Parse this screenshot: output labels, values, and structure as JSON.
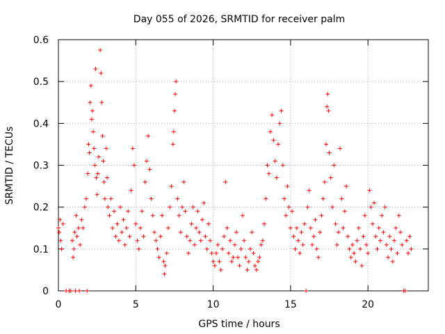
{
  "chart_data": {
    "type": "scatter",
    "title": "Day 055 of 2026, SRMTID for receiver palm",
    "xlabel": "GPS time / hours",
    "ylabel": "SRMTID / TECUs",
    "xlim": [
      0,
      23.9
    ],
    "ylim": [
      0,
      0.6
    ],
    "x_ticks": [
      0,
      5,
      10,
      15,
      20
    ],
    "y_ticks": [
      0,
      0.1,
      0.2,
      0.3,
      0.4,
      0.5,
      0.6
    ],
    "x_tick_labels": [
      "0",
      "5",
      "10",
      "15",
      "20"
    ],
    "y_tick_labels": [
      "0",
      "0.1",
      "0.2",
      "0.3",
      "0.4",
      "0.5",
      "0.6"
    ],
    "grid": true,
    "marker": "+",
    "series": [
      {
        "name": "SRMTID",
        "color": "#ff0000",
        "points": [
          [
            0.0,
            0.15
          ],
          [
            0.05,
            0.14
          ],
          [
            0.1,
            0.17
          ],
          [
            0.15,
            0.12
          ],
          [
            0.2,
            0.1
          ],
          [
            0.3,
            0.16
          ],
          [
            0.5,
            0.0
          ],
          [
            0.7,
            0.0
          ],
          [
            0.8,
            0.0
          ],
          [
            0.9,
            0.12
          ],
          [
            0.95,
            0.08
          ],
          [
            1.0,
            0.1
          ],
          [
            1.05,
            0.14
          ],
          [
            1.1,
            0.0
          ],
          [
            1.15,
            0.18
          ],
          [
            1.2,
            0.13
          ],
          [
            1.3,
            0.15
          ],
          [
            1.35,
            0.0
          ],
          [
            1.4,
            0.11
          ],
          [
            1.5,
            0.17
          ],
          [
            1.6,
            0.15
          ],
          [
            1.7,
            0.2
          ],
          [
            1.8,
            0.22
          ],
          [
            1.85,
            0.0
          ],
          [
            1.9,
            0.28
          ],
          [
            1.95,
            0.35
          ],
          [
            2.0,
            0.33
          ],
          [
            2.05,
            0.45
          ],
          [
            2.1,
            0.49
          ],
          [
            2.15,
            0.41
          ],
          [
            2.2,
            0.43
          ],
          [
            2.25,
            0.38
          ],
          [
            2.3,
            0.34
          ],
          [
            2.35,
            0.3
          ],
          [
            2.4,
            0.53
          ],
          [
            2.45,
            0.27
          ],
          [
            2.5,
            0.23
          ],
          [
            2.55,
            0.28
          ],
          [
            2.6,
            0.32
          ],
          [
            2.7,
            0.575
          ],
          [
            2.75,
            0.52
          ],
          [
            2.8,
            0.45
          ],
          [
            2.85,
            0.37
          ],
          [
            2.9,
            0.31
          ],
          [
            2.95,
            0.26
          ],
          [
            3.0,
            0.22
          ],
          [
            3.1,
            0.34
          ],
          [
            3.15,
            0.27
          ],
          [
            3.2,
            0.2
          ],
          [
            3.3,
            0.18
          ],
          [
            3.4,
            0.22
          ],
          [
            3.5,
            0.15
          ],
          [
            3.6,
            0.19
          ],
          [
            3.7,
            0.13
          ],
          [
            3.8,
            0.16
          ],
          [
            3.9,
            0.12
          ],
          [
            4.0,
            0.2
          ],
          [
            4.1,
            0.14
          ],
          [
            4.2,
            0.17
          ],
          [
            4.3,
            0.11
          ],
          [
            4.4,
            0.15
          ],
          [
            4.5,
            0.19
          ],
          [
            4.6,
            0.13
          ],
          [
            4.7,
            0.24
          ],
          [
            4.8,
            0.34
          ],
          [
            4.9,
            0.3
          ],
          [
            5.0,
            0.16
          ],
          [
            5.1,
            0.12
          ],
          [
            5.2,
            0.1
          ],
          [
            5.3,
            0.15
          ],
          [
            5.4,
            0.19
          ],
          [
            5.5,
            0.13
          ],
          [
            5.6,
            0.26
          ],
          [
            5.7,
            0.31
          ],
          [
            5.8,
            0.37
          ],
          [
            5.9,
            0.29
          ],
          [
            6.0,
            0.22
          ],
          [
            6.1,
            0.18
          ],
          [
            6.2,
            0.14
          ],
          [
            6.3,
            0.12
          ],
          [
            6.4,
            0.1
          ],
          [
            6.5,
            0.08
          ],
          [
            6.6,
            0.13
          ],
          [
            6.7,
            0.18
          ],
          [
            6.8,
            0.07
          ],
          [
            6.85,
            0.04
          ],
          [
            6.9,
            0.06
          ],
          [
            7.0,
            0.09
          ],
          [
            7.1,
            0.15
          ],
          [
            7.2,
            0.2
          ],
          [
            7.3,
            0.25
          ],
          [
            7.4,
            0.35
          ],
          [
            7.45,
            0.38
          ],
          [
            7.5,
            0.43
          ],
          [
            7.55,
            0.47
          ],
          [
            7.6,
            0.5
          ],
          [
            7.7,
            0.22
          ],
          [
            7.8,
            0.18
          ],
          [
            7.9,
            0.14
          ],
          [
            8.0,
            0.2
          ],
          [
            8.1,
            0.26
          ],
          [
            8.2,
            0.19
          ],
          [
            8.3,
            0.13
          ],
          [
            8.4,
            0.09
          ],
          [
            8.5,
            0.12
          ],
          [
            8.6,
            0.16
          ],
          [
            8.7,
            0.2
          ],
          [
            8.8,
            0.11
          ],
          [
            8.9,
            0.15
          ],
          [
            9.0,
            0.19
          ],
          [
            9.1,
            0.14
          ],
          [
            9.2,
            0.12
          ],
          [
            9.3,
            0.17
          ],
          [
            9.4,
            0.21
          ],
          [
            9.5,
            0.13
          ],
          [
            9.6,
            0.1
          ],
          [
            9.7,
            0.16
          ],
          [
            9.8,
            0.12
          ],
          [
            9.9,
            0.09
          ],
          [
            10.0,
            0.07
          ],
          [
            10.1,
            0.06
          ],
          [
            10.2,
            0.09
          ],
          [
            10.3,
            0.11
          ],
          [
            10.4,
            0.07
          ],
          [
            10.5,
            0.05
          ],
          [
            10.6,
            0.1
          ],
          [
            10.7,
            0.13
          ],
          [
            10.8,
            0.26
          ],
          [
            10.9,
            0.15
          ],
          [
            11.0,
            0.09
          ],
          [
            11.1,
            0.12
          ],
          [
            11.2,
            0.07
          ],
          [
            11.3,
            0.08
          ],
          [
            11.4,
            0.11
          ],
          [
            11.5,
            0.14
          ],
          [
            11.6,
            0.08
          ],
          [
            11.7,
            0.06
          ],
          [
            11.8,
            0.1
          ],
          [
            11.9,
            0.18
          ],
          [
            12.0,
            0.12
          ],
          [
            12.1,
            0.08
          ],
          [
            12.2,
            0.05
          ],
          [
            12.3,
            0.07
          ],
          [
            12.4,
            0.1
          ],
          [
            12.5,
            0.14
          ],
          [
            12.6,
            0.09
          ],
          [
            12.7,
            0.06
          ],
          [
            12.8,
            0.05
          ],
          [
            12.9,
            0.07
          ],
          [
            13.0,
            0.08
          ],
          [
            13.1,
            0.11
          ],
          [
            13.2,
            0.12
          ],
          [
            13.3,
            0.16
          ],
          [
            13.4,
            0.22
          ],
          [
            13.5,
            0.3
          ],
          [
            13.6,
            0.28
          ],
          [
            13.7,
            0.38
          ],
          [
            13.8,
            0.42
          ],
          [
            13.9,
            0.36
          ],
          [
            14.0,
            0.31
          ],
          [
            14.1,
            0.27
          ],
          [
            14.2,
            0.35
          ],
          [
            14.3,
            0.4
          ],
          [
            14.4,
            0.43
          ],
          [
            14.5,
            0.3
          ],
          [
            14.6,
            0.22
          ],
          [
            14.7,
            0.18
          ],
          [
            14.8,
            0.25
          ],
          [
            14.9,
            0.2
          ],
          [
            15.0,
            0.15
          ],
          [
            15.1,
            0.19
          ],
          [
            15.2,
            0.13
          ],
          [
            15.3,
            0.1
          ],
          [
            15.4,
            0.15
          ],
          [
            15.5,
            0.12
          ],
          [
            15.6,
            0.09
          ],
          [
            15.7,
            0.14
          ],
          [
            15.8,
            0.11
          ],
          [
            15.9,
            0.16
          ],
          [
            16.0,
            0.0
          ],
          [
            16.1,
            0.2
          ],
          [
            16.2,
            0.24
          ],
          [
            16.3,
            0.15
          ],
          [
            16.4,
            0.11
          ],
          [
            16.5,
            0.13
          ],
          [
            16.6,
            0.17
          ],
          [
            16.7,
            0.1
          ],
          [
            16.8,
            0.08
          ],
          [
            16.9,
            0.14
          ],
          [
            17.0,
            0.18
          ],
          [
            17.1,
            0.22
          ],
          [
            17.2,
            0.26
          ],
          [
            17.3,
            0.35
          ],
          [
            17.35,
            0.44
          ],
          [
            17.4,
            0.47
          ],
          [
            17.45,
            0.43
          ],
          [
            17.5,
            0.33
          ],
          [
            17.6,
            0.27
          ],
          [
            17.7,
            0.2
          ],
          [
            17.8,
            0.3
          ],
          [
            17.9,
            0.16
          ],
          [
            18.0,
            0.11
          ],
          [
            18.1,
            0.14
          ],
          [
            18.2,
            0.34
          ],
          [
            18.3,
            0.22
          ],
          [
            18.4,
            0.15
          ],
          [
            18.5,
            0.19
          ],
          [
            18.6,
            0.25
          ],
          [
            18.7,
            0.13
          ],
          [
            18.8,
            0.1
          ],
          [
            18.9,
            0.08
          ],
          [
            19.0,
            0.11
          ],
          [
            19.1,
            0.09
          ],
          [
            19.2,
            0.07
          ],
          [
            19.3,
            0.12
          ],
          [
            19.4,
            0.15
          ],
          [
            19.5,
            0.1
          ],
          [
            19.6,
            0.06
          ],
          [
            19.7,
            0.13
          ],
          [
            19.8,
            0.18
          ],
          [
            19.9,
            0.11
          ],
          [
            20.0,
            0.09
          ],
          [
            20.1,
            0.24
          ],
          [
            20.2,
            0.2
          ],
          [
            20.3,
            0.16
          ],
          [
            20.4,
            0.21
          ],
          [
            20.5,
            0.13
          ],
          [
            20.6,
            0.1
          ],
          [
            20.7,
            0.15
          ],
          [
            20.8,
            0.12
          ],
          [
            20.9,
            0.18
          ],
          [
            21.0,
            0.14
          ],
          [
            21.1,
            0.2
          ],
          [
            21.2,
            0.11
          ],
          [
            21.3,
            0.08
          ],
          [
            21.4,
            0.13
          ],
          [
            21.5,
            0.1
          ],
          [
            21.6,
            0.07
          ],
          [
            21.7,
            0.12
          ],
          [
            21.8,
            0.15
          ],
          [
            21.9,
            0.09
          ],
          [
            22.0,
            0.18
          ],
          [
            22.1,
            0.14
          ],
          [
            22.2,
            0.11
          ],
          [
            22.3,
            0.0
          ],
          [
            22.4,
            0.0
          ],
          [
            22.5,
            0.12
          ],
          [
            22.6,
            0.09
          ],
          [
            22.7,
            0.13
          ],
          [
            22.8,
            0.1
          ]
        ]
      }
    ]
  }
}
